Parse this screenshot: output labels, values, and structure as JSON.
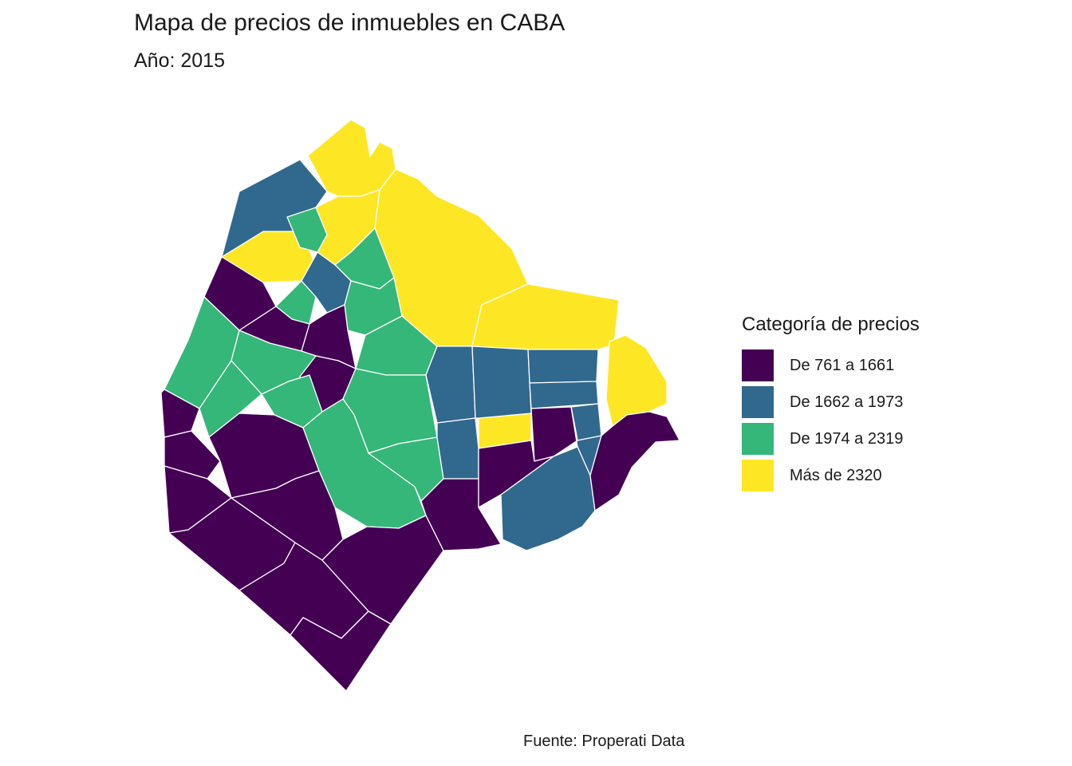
{
  "title": "Mapa de precios de inmuebles en CABA",
  "subtitle": "Año: 2015",
  "caption": "Fuente: Properati Data",
  "legend": {
    "title": "Categoría de precios",
    "items": [
      {
        "label": "De 761 a 1661",
        "color": "#440154"
      },
      {
        "label": "De 1662 a 1973",
        "color": "#31688E"
      },
      {
        "label": "De 1974 a 2319",
        "color": "#35B779"
      },
      {
        "label": "Más de 2320",
        "color": "#FDE725"
      }
    ]
  },
  "map": {
    "type": "choropleth",
    "region": "Ciudad Autónoma de Buenos Aires",
    "fill_by": "Categoría de precios",
    "border_color": "#ffffff",
    "background": "#ffffff"
  }
}
